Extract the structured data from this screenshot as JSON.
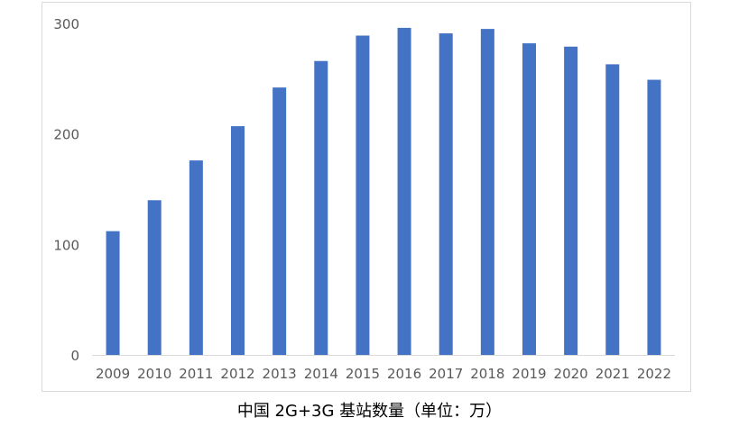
{
  "caption": "中国 2G+3G 基站数量（单位：万）",
  "chart_data": {
    "type": "bar",
    "title": "",
    "xlabel": "",
    "ylabel": "",
    "categories": [
      "2009",
      "2010",
      "2011",
      "2012",
      "2013",
      "2014",
      "2015",
      "2016",
      "2017",
      "2018",
      "2019",
      "2020",
      "2021",
      "2022"
    ],
    "values": [
      112,
      140,
      176,
      207,
      242,
      266,
      289,
      296,
      291,
      295,
      282,
      279,
      263,
      249
    ],
    "ylim": [
      0,
      300
    ],
    "yticks": [
      0,
      100,
      200,
      300
    ],
    "grid": false,
    "legend": "none",
    "bar_color": "#4472c4"
  }
}
